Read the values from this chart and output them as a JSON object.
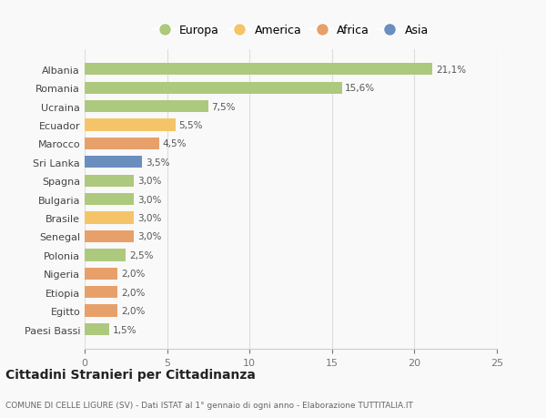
{
  "categories": [
    "Albania",
    "Romania",
    "Ucraina",
    "Ecuador",
    "Marocco",
    "Sri Lanka",
    "Spagna",
    "Bulgaria",
    "Brasile",
    "Senegal",
    "Polonia",
    "Nigeria",
    "Etiopia",
    "Egitto",
    "Paesi Bassi"
  ],
  "values": [
    21.1,
    15.6,
    7.5,
    5.5,
    4.5,
    3.5,
    3.0,
    3.0,
    3.0,
    3.0,
    2.5,
    2.0,
    2.0,
    2.0,
    1.5
  ],
  "labels": [
    "21,1%",
    "15,6%",
    "7,5%",
    "5,5%",
    "4,5%",
    "3,5%",
    "3,0%",
    "3,0%",
    "3,0%",
    "3,0%",
    "2,5%",
    "2,0%",
    "2,0%",
    "2,0%",
    "1,5%"
  ],
  "colors": [
    "#adc97d",
    "#adc97d",
    "#adc97d",
    "#f5c469",
    "#e8a06a",
    "#6a8fbf",
    "#adc97d",
    "#adc97d",
    "#f5c469",
    "#e8a06a",
    "#adc97d",
    "#e8a06a",
    "#e8a06a",
    "#e8a06a",
    "#adc97d"
  ],
  "legend_labels": [
    "Europa",
    "America",
    "Africa",
    "Asia"
  ],
  "legend_colors": [
    "#adc97d",
    "#f5c469",
    "#e8a06a",
    "#6a8fbf"
  ],
  "title": "Cittadini Stranieri per Cittadinanza",
  "subtitle": "COMUNE DI CELLE LIGURE (SV) - Dati ISTAT al 1° gennaio di ogni anno - Elaborazione TUTTITALIA.IT",
  "xlim": [
    0,
    25
  ],
  "xticks": [
    0,
    5,
    10,
    15,
    20,
    25
  ],
  "background_color": "#f9f9f9"
}
